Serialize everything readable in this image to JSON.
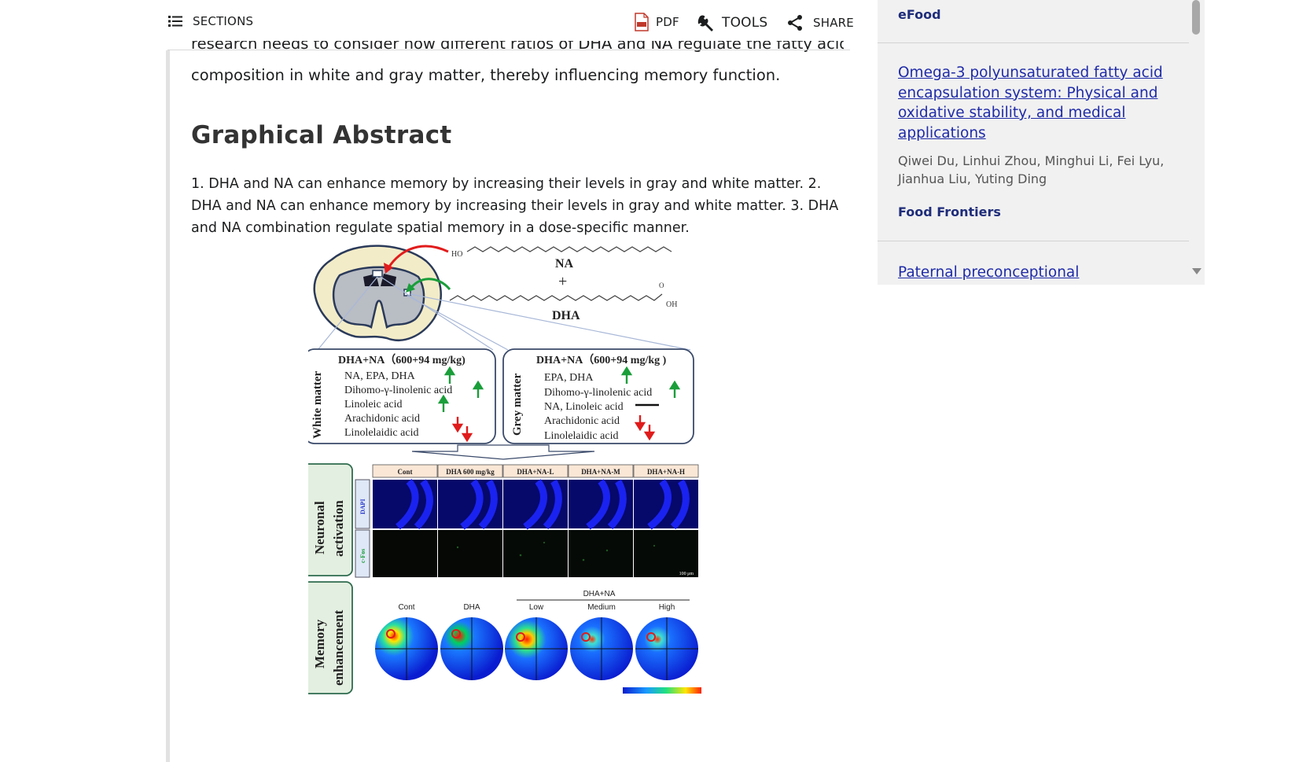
{
  "toolbar": {
    "sections_label": "SECTIONS",
    "pdf_label": "PDF",
    "tools_label": "TOOLS",
    "share_label": "SHARE"
  },
  "article": {
    "cut_line": "research needs to consider how different ratios of DHA and NA regulate the fatty acid",
    "prev_line": "composition in white and gray matter, thereby influencing memory function.",
    "heading": "Graphical Abstract",
    "abstract_text": "1. DHA and NA can enhance memory by increasing their levels in gray and white matter. 2. DHA and NA can enhance memory by increasing their levels in gray and white matter. 3. DHA and NA combination regulate spatial memory in a dose-specific manner."
  },
  "figure": {
    "molecule_labels": {
      "na": "NA",
      "plus": "+",
      "dha": "DHA",
      "ho": "HO",
      "oh": "OH",
      "o": "O"
    },
    "white_matter": {
      "side_label": "White matter",
      "title": "DHA+NA（600+94 mg/kg)",
      "rows": [
        "NA, EPA, DHA",
        "Dihomo-γ-linolenic acid",
        "Linoleic acid",
        "Arachidonic acid",
        "Linolelaidic acid"
      ]
    },
    "grey_matter": {
      "side_label": "Grey matter",
      "title": "DHA+NA（600+94 mg/kg )",
      "rows": [
        "EPA, DHA",
        "Dihomo-γ-linolenic acid",
        "NA, Linoleic acid",
        "Arachidonic acid",
        "Linolelaidic acid"
      ]
    },
    "neuronal_label_1": "Neuronal",
    "neuronal_label_2": "activation",
    "stain_dapi": "DAPI",
    "stain_cfos": "c-Fos",
    "groups": [
      "Cont",
      "DHA 600 mg/kg",
      "DHA+NA-L",
      "DHA+NA-M",
      "DHA+NA-H"
    ],
    "scale_bar": "100 μm",
    "memory_label_1": "Memory",
    "memory_label_2": "enhancement",
    "heat_group_header": "DHA+NA",
    "heat_labels": [
      "Cont",
      "DHA",
      "Low",
      "Medium",
      "High"
    ],
    "colors": {
      "up": "#1a9e3a",
      "down": "#e01b1b",
      "dapi_blue": "#1a22d8",
      "box_fill": "#e3efe0",
      "box_border": "#2e6b4e"
    }
  },
  "sidebar": {
    "journal_1": "eFood",
    "article_title": "Omega‐3 polyunsaturated fatty acid encapsulation system: Physical and oxidative stability, and medical applications",
    "authors": "Qiwei Du, Linhui Zhou, Minghui Li, Fei Lyu, Jianhua Liu, Yuting Ding",
    "journal_2": "Food Frontiers",
    "next_title": "Paternal preconceptional"
  }
}
